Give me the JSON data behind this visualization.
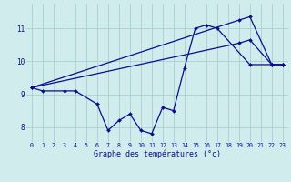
{
  "xlabel": "Graphe des températures (°c)",
  "line_color": "#0d0d8a",
  "bg_color": "#d0ecec",
  "grid_color": "#a0cccc",
  "ylim": [
    7.55,
    11.75
  ],
  "yticks": [
    8,
    9,
    10,
    11
  ],
  "xlim": [
    -0.5,
    23.5
  ],
  "figsize": [
    3.2,
    2.0
  ],
  "dpi": 100,
  "curve_dip_x": [
    0,
    1,
    3,
    4,
    6,
    7,
    8,
    9,
    10,
    11,
    12,
    13,
    14,
    15,
    16,
    17,
    20,
    22,
    23
  ],
  "curve_dip_y": [
    9.2,
    9.1,
    9.1,
    9.1,
    8.7,
    7.9,
    8.2,
    8.4,
    7.9,
    7.8,
    8.6,
    8.5,
    9.8,
    11.0,
    11.1,
    11.0,
    9.9,
    9.9,
    9.9
  ],
  "curve_top_x": [
    0,
    19,
    20,
    22,
    23
  ],
  "curve_top_y": [
    9.2,
    11.25,
    11.35,
    9.9,
    9.9
  ],
  "curve_mid_x": [
    0,
    19,
    20,
    22,
    23
  ],
  "curve_mid_y": [
    9.2,
    10.55,
    10.65,
    9.9,
    9.9
  ]
}
